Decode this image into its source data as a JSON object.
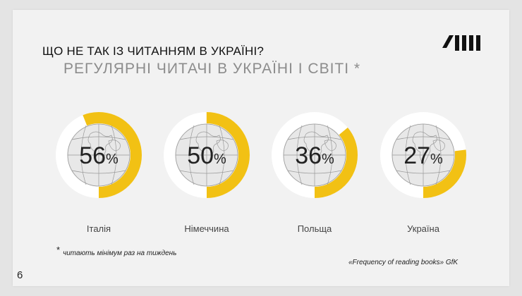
{
  "header": {
    "title": "ЩО НЕ ТАК ІЗ ЧИТАННЯМ В УКРАЇНІ?",
    "subtitle": "РЕГУЛЯРНІ ЧИТАЧІ В УКРАЇНІ І СВІТІ *"
  },
  "colors": {
    "accent": "#f2c114",
    "track": "#ffffff",
    "globe": "#e8e8e8",
    "globe_lines": "#9a9a9a",
    "background": "#f2f2f2"
  },
  "chart_data": {
    "type": "pie",
    "unit": "%",
    "categories": [
      "Італія",
      "Німеччина",
      "Польща",
      "Україна"
    ],
    "values": [
      56,
      50,
      36,
      27
    ]
  },
  "footnote": {
    "marker": "*",
    "text": "читають мінімум раз на тиждень"
  },
  "source": "«Frequency of reading books» GfK",
  "page_number": "6",
  "icons": {
    "logo": "brand-stripes-logo",
    "globe": "globe-icon"
  }
}
